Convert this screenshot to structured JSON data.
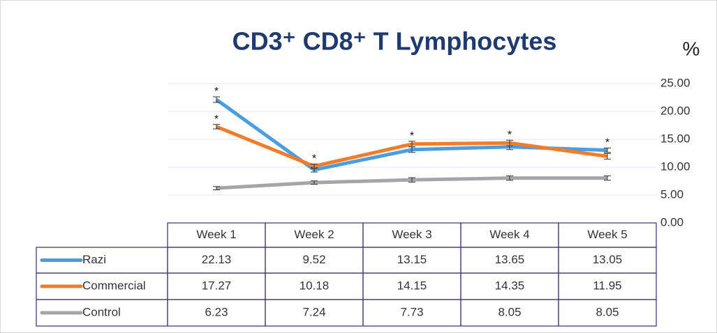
{
  "chart_data": {
    "type": "line",
    "title": "CD3⁺ CD8⁺ T Lymphocytes",
    "y_label": "%",
    "categories": [
      "Week 1",
      "Week 2",
      "Week 3",
      "Week 4",
      "Week 5"
    ],
    "series": [
      {
        "name": "Razi",
        "color": "#4a9ee0",
        "values": [
          22.13,
          9.52,
          13.15,
          13.65,
          13.05
        ],
        "errors": [
          0.5,
          0.4,
          0.5,
          0.5,
          0.4
        ]
      },
      {
        "name": "Commercial",
        "color": "#f07d2c",
        "values": [
          17.27,
          10.18,
          14.15,
          14.35,
          11.95
        ],
        "errors": [
          0.4,
          0.4,
          0.5,
          0.5,
          0.5
        ]
      },
      {
        "name": "Control",
        "color": "#a5a5a5",
        "values": [
          6.23,
          7.24,
          7.73,
          8.05,
          8.05
        ],
        "errors": [
          0.3,
          0.3,
          0.4,
          0.4,
          0.4
        ]
      }
    ],
    "annotations": [
      {
        "text": "*",
        "series": 0,
        "category": 0
      },
      {
        "text": "*",
        "series": 1,
        "category": 0
      },
      {
        "text": "*",
        "series": 1,
        "category": 1
      },
      {
        "text": "*",
        "series": 1,
        "category": 2
      },
      {
        "text": "*",
        "series": 1,
        "category": 3
      },
      {
        "text": "*",
        "series": 0,
        "category": 4
      }
    ],
    "ylim": [
      0,
      25
    ],
    "yticks": [
      {
        "value": 0,
        "label": "0.00"
      },
      {
        "value": 5,
        "label": "5.00"
      },
      {
        "value": 10,
        "label": "10.00"
      },
      {
        "value": 15,
        "label": "15.00"
      },
      {
        "value": 20,
        "label": "20.00"
      },
      {
        "value": 25,
        "label": "25.00"
      }
    ],
    "grid": true,
    "data_table": true
  }
}
